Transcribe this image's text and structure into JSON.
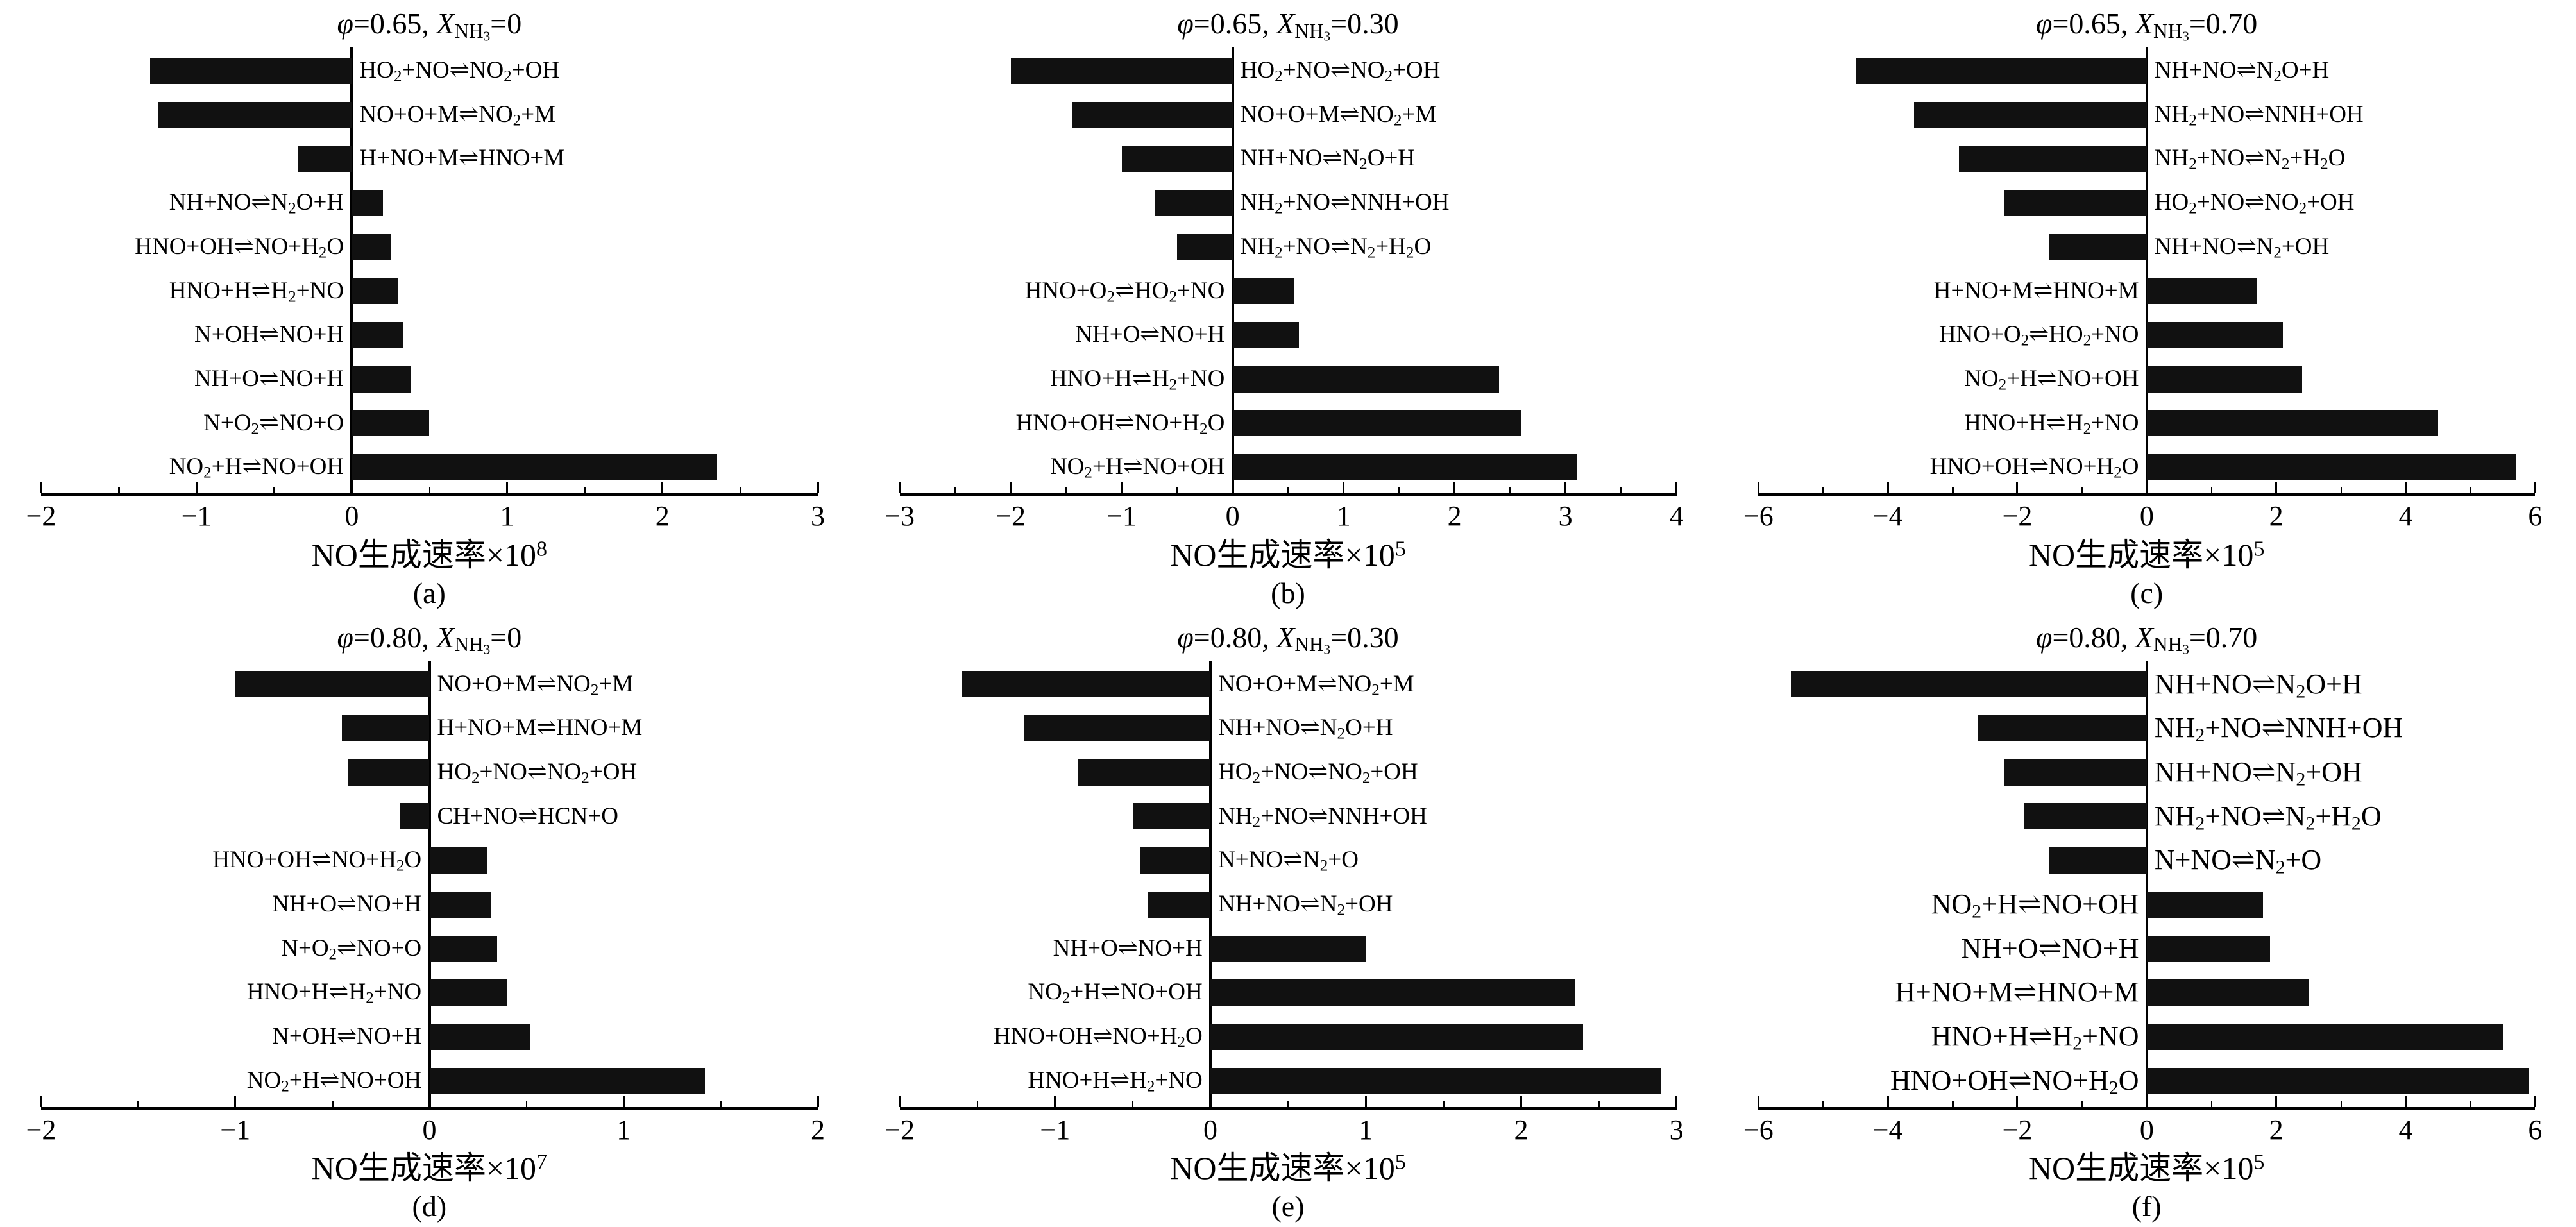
{
  "figure": {
    "background": "#ffffff",
    "bar_color": "#111111",
    "text_color": "#000000",
    "grid": false,
    "legend": "none"
  },
  "symbols": {
    "phi": "φ",
    "x_var": "X",
    "x_subscript": "NH3",
    "equilibrium_arrow": "⇌"
  },
  "chart_data": [
    {
      "type": "bar",
      "orientation": "horizontal",
      "panel_label": "(a)",
      "phi": "0.65",
      "x_nh3": "0",
      "xlabel_base": "NO生成速率×10",
      "xlabel_exponent": "8",
      "xlim": [
        -2,
        3
      ],
      "xticks": [
        -2,
        -1,
        0,
        1,
        2,
        3
      ],
      "label_font_px": 37,
      "reactions": [
        "HO2+NO⇌NO2+OH",
        "NO+O+M⇌NO2+M",
        "H+NO+M⇌HNO+M",
        "NH+NO⇌N2O+H",
        "HNO+OH⇌NO+H2O",
        "HNO+H⇌H2+NO",
        "N+OH⇌NO+H",
        "NH+O⇌NO+H",
        "N+O2⇌NO+O",
        "NO2+H⇌NO+OH"
      ],
      "values": [
        -1.3,
        -1.25,
        -0.35,
        0.2,
        0.25,
        0.3,
        0.33,
        0.38,
        0.5,
        2.35
      ]
    },
    {
      "type": "bar",
      "orientation": "horizontal",
      "panel_label": "(b)",
      "phi": "0.65",
      "x_nh3": "0.30",
      "xlabel_base": "NO生成速率×10",
      "xlabel_exponent": "5",
      "xlim": [
        -3,
        4
      ],
      "xticks": [
        -3,
        -2,
        -1,
        0,
        1,
        2,
        3,
        4
      ],
      "label_font_px": 37,
      "reactions": [
        "HO2+NO⇌NO2+OH",
        "NO+O+M⇌NO2+M",
        "NH+NO⇌N2O+H",
        "NH2+NO⇌NNH+OH",
        "NH2+NO⇌N2+H2O",
        "HNO+O2⇌HO2+NO",
        "NH+O⇌NO+H",
        "HNO+H⇌H2+NO",
        "HNO+OH⇌NO+H2O",
        "NO2+H⇌NO+OH"
      ],
      "values": [
        -2.0,
        -1.45,
        -1.0,
        -0.7,
        -0.5,
        0.55,
        0.6,
        2.4,
        2.6,
        3.1
      ]
    },
    {
      "type": "bar",
      "orientation": "horizontal",
      "panel_label": "(c)",
      "phi": "0.65",
      "x_nh3": "0.70",
      "xlabel_base": "NO生成速率×10",
      "xlabel_exponent": "5",
      "xlim": [
        -6,
        6
      ],
      "xticks": [
        -6,
        -4,
        -2,
        0,
        2,
        4,
        6
      ],
      "label_font_px": 37,
      "reactions": [
        "NH+NO⇌N2O+H",
        "NH2+NO⇌NNH+OH",
        "NH2+NO⇌N2+H2O",
        "HO2+NO⇌NO2+OH",
        "NH+NO⇌N2+OH",
        "H+NO+M⇌HNO+M",
        "HNO+O2⇌HO2+NO",
        "NO2+H⇌NO+OH",
        "HNO+H⇌H2+NO",
        "HNO+OH⇌NO+H2O"
      ],
      "values": [
        -4.5,
        -3.6,
        -2.9,
        -2.2,
        -1.5,
        1.7,
        2.1,
        2.4,
        4.5,
        5.7
      ]
    },
    {
      "type": "bar",
      "orientation": "horizontal",
      "panel_label": "(d)",
      "phi": "0.80",
      "x_nh3": "0",
      "xlabel_base": "NO生成速率×10",
      "xlabel_exponent": "7",
      "xlim": [
        -2,
        2
      ],
      "xticks": [
        -2,
        -1,
        0,
        1,
        2
      ],
      "label_font_px": 37,
      "reactions": [
        "NO+O+M⇌NO2+M",
        "H+NO+M⇌HNO+M",
        "HO2+NO⇌NO2+OH",
        "CH+NO⇌HCN+O",
        "HNO+OH⇌NO+H2O",
        "NH+O⇌NO+H",
        "N+O2⇌NO+O",
        "HNO+H⇌H2+NO",
        "N+OH⇌NO+H",
        "NO2+H⇌NO+OH"
      ],
      "values": [
        -1.0,
        -0.45,
        -0.42,
        -0.15,
        0.3,
        0.32,
        0.35,
        0.4,
        0.52,
        1.42
      ]
    },
    {
      "type": "bar",
      "orientation": "horizontal",
      "panel_label": "(e)",
      "phi": "0.80",
      "x_nh3": "0.30",
      "xlabel_base": "NO生成速率×10",
      "xlabel_exponent": "5",
      "xlim": [
        -2,
        3
      ],
      "xticks": [
        -2,
        -1,
        0,
        1,
        2,
        3
      ],
      "label_font_px": 37,
      "reactions": [
        "NO+O+M⇌NO2+M",
        "NH+NO⇌N2O+H",
        "HO2+NO⇌NO2+OH",
        "NH2+NO⇌NNH+OH",
        "N+NO⇌N2+O",
        "NH+NO⇌N2+OH",
        "NH+O⇌NO+H",
        "NO2+H⇌NO+OH",
        "HNO+OH⇌NO+H2O",
        "HNO+H⇌H2+NO"
      ],
      "values": [
        -1.6,
        -1.2,
        -0.85,
        -0.5,
        -0.45,
        -0.4,
        1.0,
        2.35,
        2.4,
        2.9
      ]
    },
    {
      "type": "bar",
      "orientation": "horizontal",
      "panel_label": "(f)",
      "phi": "0.80",
      "x_nh3": "0.70",
      "xlabel_base": "NO生成速率×10",
      "xlabel_exponent": "5",
      "xlim": [
        -6,
        6
      ],
      "xticks": [
        -6,
        -4,
        -2,
        0,
        2,
        4,
        6
      ],
      "label_font_px": 44,
      "reactions": [
        "NH+NO⇌N2O+H",
        "NH2+NO⇌NNH+OH",
        "NH+NO⇌N2+OH",
        "NH2+NO⇌N2+H2O",
        "N+NO⇌N2+O",
        "NO2+H⇌NO+OH",
        "NH+O⇌NO+H",
        "H+NO+M⇌HNO+M",
        "HNO+H⇌H2+NO",
        "HNO+OH⇌NO+H2O"
      ],
      "values": [
        -5.5,
        -2.6,
        -2.2,
        -1.9,
        -1.5,
        1.8,
        1.9,
        2.5,
        5.5,
        5.9
      ]
    }
  ]
}
